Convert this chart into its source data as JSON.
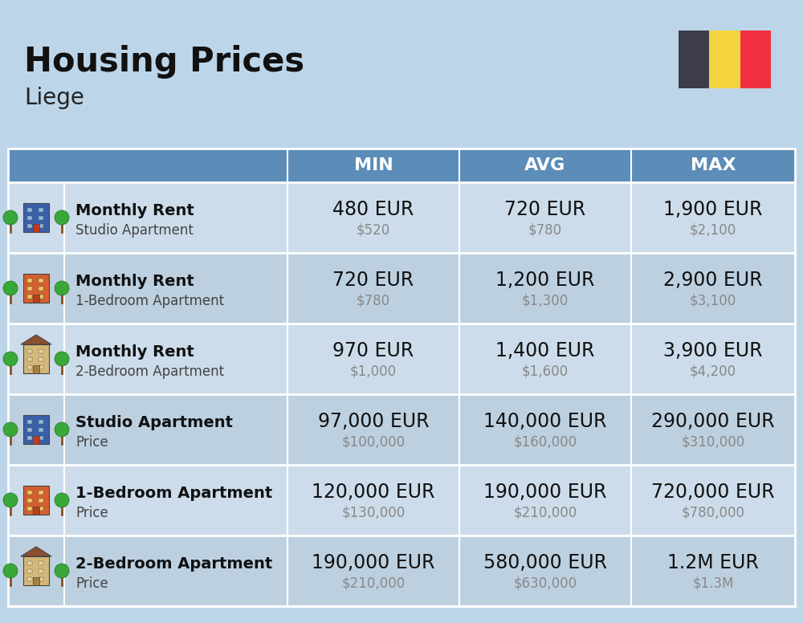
{
  "title": "Housing Prices",
  "subtitle": "Liege",
  "background_color": "#bdd5e8",
  "header_bg_color": "#5b8db8",
  "header_text_color": "#ffffff",
  "row_bg_color_1": "#ccdcea",
  "row_bg_color_2": "#bdd0e0",
  "divider_color": "#ffffff",
  "col_headers": [
    "MIN",
    "AVG",
    "MAX"
  ],
  "rows": [
    {
      "bold_label": "Monthly Rent",
      "sub_label": "Studio Apartment",
      "icon_type": "studio_blue",
      "min_eur": "480 EUR",
      "min_usd": "$520",
      "avg_eur": "720 EUR",
      "avg_usd": "$780",
      "max_eur": "1,900 EUR",
      "max_usd": "$2,100"
    },
    {
      "bold_label": "Monthly Rent",
      "sub_label": "1-Bedroom Apartment",
      "icon_type": "onebr_orange",
      "min_eur": "720 EUR",
      "min_usd": "$780",
      "avg_eur": "1,200 EUR",
      "avg_usd": "$1,300",
      "max_eur": "2,900 EUR",
      "max_usd": "$3,100"
    },
    {
      "bold_label": "Monthly Rent",
      "sub_label": "2-Bedroom Apartment",
      "icon_type": "twobr_beige",
      "min_eur": "970 EUR",
      "min_usd": "$1,000",
      "avg_eur": "1,400 EUR",
      "avg_usd": "$1,600",
      "max_eur": "3,900 EUR",
      "max_usd": "$4,200"
    },
    {
      "bold_label": "Studio Apartment",
      "sub_label": "Price",
      "icon_type": "studio_blue",
      "min_eur": "97,000 EUR",
      "min_usd": "$100,000",
      "avg_eur": "140,000 EUR",
      "avg_usd": "$160,000",
      "max_eur": "290,000 EUR",
      "max_usd": "$310,000"
    },
    {
      "bold_label": "1-Bedroom Apartment",
      "sub_label": "Price",
      "icon_type": "onebr_orange",
      "min_eur": "120,000 EUR",
      "min_usd": "$130,000",
      "avg_eur": "190,000 EUR",
      "avg_usd": "$210,000",
      "max_eur": "720,000 EUR",
      "max_usd": "$780,000"
    },
    {
      "bold_label": "2-Bedroom Apartment",
      "sub_label": "Price",
      "icon_type": "twobr_beige",
      "min_eur": "190,000 EUR",
      "min_usd": "$210,000",
      "avg_eur": "580,000 EUR",
      "avg_usd": "$630,000",
      "max_eur": "1.2M EUR",
      "max_usd": "$1.3M"
    }
  ],
  "flag_colors": [
    "#3d3d4a",
    "#f5d53f",
    "#f03040"
  ],
  "title_fontsize": 30,
  "subtitle_fontsize": 20,
  "eur_fontsize": 17,
  "usd_fontsize": 12,
  "label_bold_fontsize": 14,
  "label_sub_fontsize": 12,
  "header_fontsize": 16
}
